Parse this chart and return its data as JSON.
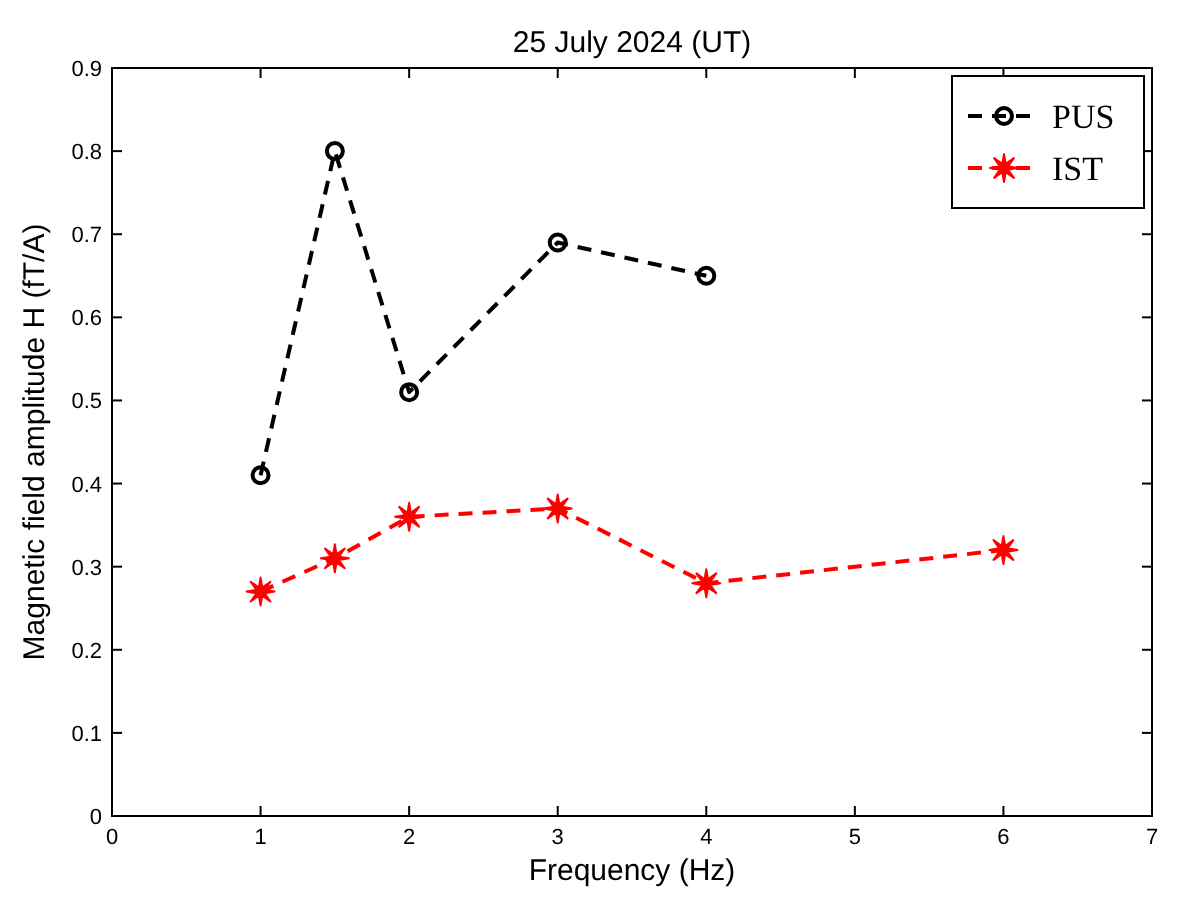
{
  "chart_data": {
    "type": "line",
    "title": "25 July 2024 (UT)",
    "xlabel": "Frequency (Hz)",
    "ylabel": "Magnetic field amplitude H (fT/A)",
    "xlim": [
      0,
      7
    ],
    "xticks": [
      0,
      1,
      2,
      3,
      4,
      5,
      6,
      7
    ],
    "ylim": [
      0,
      0.9
    ],
    "yticks": [
      {
        "value": 0,
        "label": "0"
      },
      {
        "value": 0.1,
        "label": "0.1"
      },
      {
        "value": 0.2,
        "label": "0.2"
      },
      {
        "value": 0.3,
        "label": "0.3"
      },
      {
        "value": 0.4,
        "label": "0.4"
      },
      {
        "value": 0.5,
        "label": "0.5"
      },
      {
        "value": 0.6,
        "label": "0.6"
      },
      {
        "value": 0.7,
        "label": "0.7"
      },
      {
        "value": 0.8,
        "label": "0.8"
      },
      {
        "value": 0.9,
        "label": "0.9"
      }
    ],
    "grid": false,
    "legend": "top right",
    "line_style": "dashed",
    "series": [
      {
        "name": "PUS",
        "color": "#000000",
        "marker": "circle",
        "x": [
          1,
          1.5,
          2,
          3,
          4
        ],
        "values": [
          0.41,
          0.8,
          0.51,
          0.69,
          0.65
        ]
      },
      {
        "name": "IST",
        "color": "#ff0000",
        "marker": "star",
        "x": [
          1,
          1.5,
          2,
          3,
          4,
          6
        ],
        "values": [
          0.27,
          0.31,
          0.36,
          0.37,
          0.28,
          0.32
        ]
      }
    ]
  }
}
